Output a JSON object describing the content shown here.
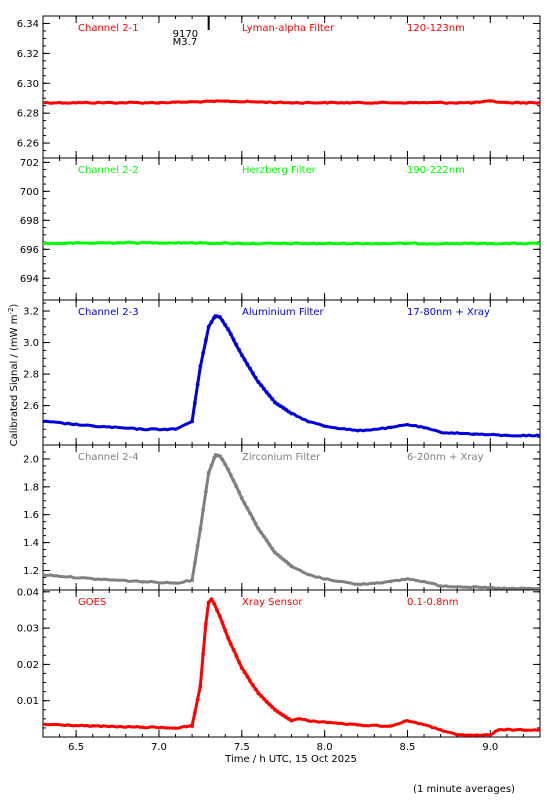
{
  "chart_data": {
    "type": "scatter",
    "xlabel": "Time / h UTC, 15 Oct 2025",
    "ylabel": "Calibrated Signal / (mW m",
    "ylabel_superscript": "-2",
    "ylabel_suffix": ")",
    "footnote": "(1 minute averages)",
    "xlim": [
      6.3,
      9.3
    ],
    "xticks": [
      6.5,
      7.0,
      7.5,
      8.0,
      8.5,
      9.0
    ],
    "xtick_labels": [
      "6.5",
      "7.0",
      "7.5",
      "8.0",
      "8.5",
      "9.0"
    ],
    "grid": false,
    "event_marker": {
      "x": 7.3,
      "labels": [
        "9170",
        "M3.7"
      ]
    },
    "panels": [
      {
        "id": "channel-2-1",
        "name": "Channel 2-1",
        "filter": "Lyman-alpha Filter",
        "band": "120-123nm",
        "color": "#ff0000",
        "ylim": [
          6.25,
          6.345
        ],
        "yticks": [
          6.26,
          6.28,
          6.3,
          6.32,
          6.34
        ],
        "ytick_labels": [
          "6.26",
          "6.28",
          "6.30",
          "6.32",
          "6.34"
        ],
        "x": [
          6.3,
          7.0,
          7.4,
          7.8,
          8.5,
          8.9,
          9.0,
          9.1,
          9.3
        ],
        "y": [
          6.287,
          6.287,
          6.288,
          6.287,
          6.287,
          6.287,
          6.288,
          6.287,
          6.287
        ]
      },
      {
        "id": "channel-2-2",
        "name": "Channel 2-2",
        "filter": "Herzberg Filter",
        "band": "190-222nm",
        "color": "#00ff00",
        "ylim": [
          692.5,
          702.3
        ],
        "yticks": [
          694,
          696,
          698,
          700,
          702
        ],
        "ytick_labels": [
          "694",
          "696",
          "698",
          "700",
          "702"
        ],
        "x": [
          6.3,
          6.75,
          7.15,
          7.5,
          8.0,
          8.5,
          9.0,
          9.3
        ],
        "y": [
          696.4,
          696.45,
          696.45,
          696.4,
          696.4,
          696.4,
          696.4,
          696.4
        ]
      },
      {
        "id": "channel-2-3",
        "name": "Channel 2-3",
        "filter": "Aluminium Filter",
        "band": "17-80nm + Xray",
        "color": "#0000dd",
        "ylim": [
          2.35,
          3.27
        ],
        "yticks": [
          2.6,
          2.8,
          3.0,
          3.2
        ],
        "ytick_labels": [
          "2.6",
          "2.8",
          "3.0",
          "3.2"
        ],
        "x": [
          6.3,
          6.6,
          6.9,
          7.1,
          7.2,
          7.25,
          7.3,
          7.34,
          7.37,
          7.42,
          7.5,
          7.6,
          7.7,
          7.8,
          7.9,
          8.0,
          8.2,
          8.4,
          8.5,
          8.6,
          8.7,
          8.9,
          9.1,
          9.3
        ],
        "y": [
          2.5,
          2.47,
          2.45,
          2.45,
          2.5,
          2.85,
          3.1,
          3.17,
          3.16,
          3.08,
          2.92,
          2.75,
          2.62,
          2.55,
          2.5,
          2.47,
          2.44,
          2.46,
          2.48,
          2.46,
          2.43,
          2.42,
          2.41,
          2.41
        ]
      },
      {
        "id": "channel-2-4",
        "name": "Channel 2-4",
        "filter": "Zirconium Filter",
        "band": "6-20nm + Xray",
        "color": "#808080",
        "ylim": [
          1.06,
          2.1
        ],
        "yticks": [
          1.2,
          1.4,
          1.6,
          1.8,
          2.0
        ],
        "ytick_labels": [
          "1.2",
          "1.4",
          "1.6",
          "1.8",
          "2.0"
        ],
        "x": [
          6.3,
          6.6,
          6.9,
          7.1,
          7.2,
          7.25,
          7.3,
          7.34,
          7.37,
          7.42,
          7.5,
          7.6,
          7.7,
          7.8,
          7.9,
          8.0,
          8.2,
          8.4,
          8.5,
          8.6,
          8.7,
          8.9,
          9.1,
          9.3
        ],
        "y": [
          1.17,
          1.14,
          1.12,
          1.11,
          1.13,
          1.5,
          1.9,
          2.03,
          2.02,
          1.92,
          1.72,
          1.5,
          1.33,
          1.23,
          1.17,
          1.14,
          1.1,
          1.12,
          1.14,
          1.12,
          1.09,
          1.08,
          1.07,
          1.07
        ]
      },
      {
        "id": "goes",
        "name": "GOES",
        "filter": "Xray Sensor",
        "band": "0.1-0.8nm",
        "color": "#ff0000",
        "ylim": [
          0.0,
          0.0405
        ],
        "yticks": [
          0.01,
          0.02,
          0.03,
          0.04
        ],
        "ytick_labels": [
          "0.01",
          "0.02",
          "0.03",
          "0.04"
        ],
        "x": [
          6.3,
          6.6,
          6.9,
          7.1,
          7.2,
          7.25,
          7.28,
          7.3,
          7.32,
          7.37,
          7.42,
          7.5,
          7.6,
          7.7,
          7.8,
          7.85,
          7.9,
          8.2,
          8.4,
          8.5,
          8.55,
          8.7,
          8.8,
          9.0,
          9.05,
          9.3
        ],
        "y": [
          0.0035,
          0.003,
          0.0027,
          0.0025,
          0.003,
          0.014,
          0.03,
          0.037,
          0.038,
          0.033,
          0.027,
          0.019,
          0.012,
          0.0075,
          0.0045,
          0.005,
          0.0045,
          0.0033,
          0.003,
          0.0045,
          0.004,
          0.002,
          0.0005,
          0.0005,
          0.002,
          0.002
        ]
      }
    ]
  }
}
